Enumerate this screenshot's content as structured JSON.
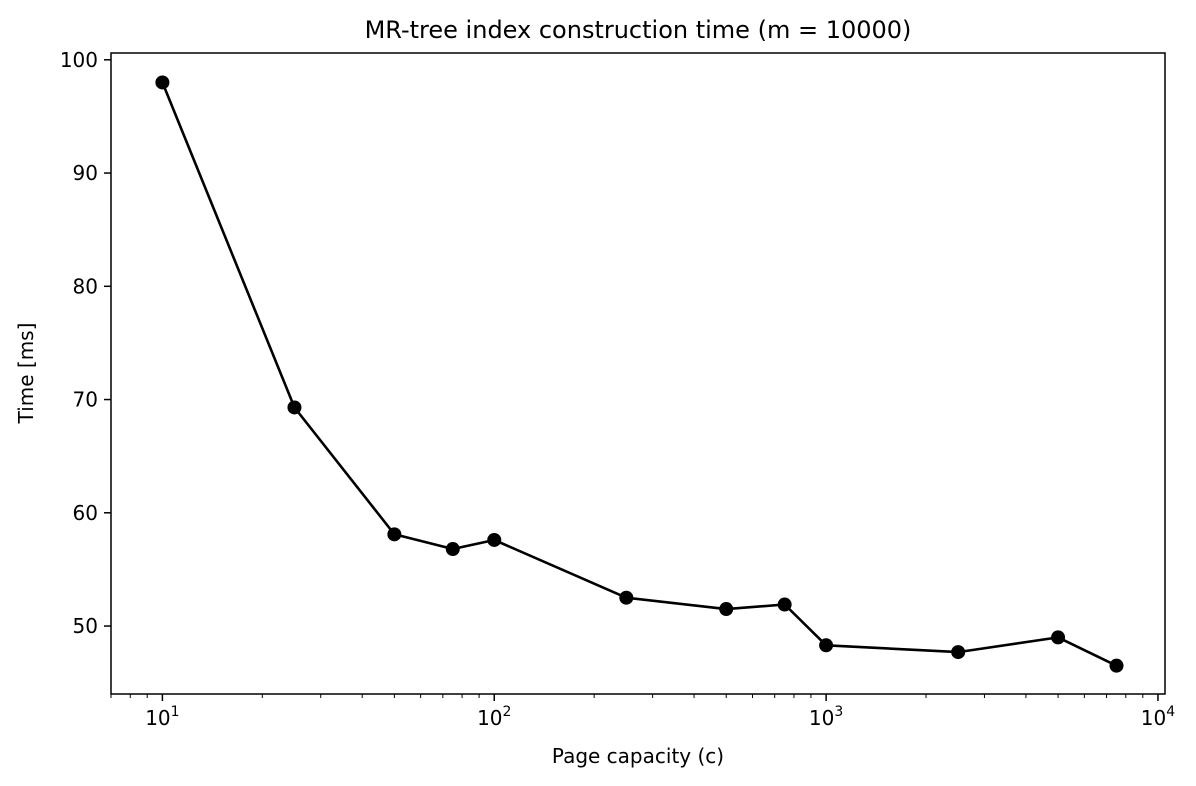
{
  "chart_data": {
    "type": "line",
    "title": "MR-tree index construction time (m = 10000)",
    "xlabel": "Page capacity (c)",
    "ylabel": "Time [ms]",
    "xscale": "log",
    "xlim": [
      7,
      10500
    ],
    "ylim": [
      44,
      100.6
    ],
    "grid": false,
    "legend": "none",
    "x_ticks": [
      {
        "value": 10,
        "base": "10",
        "exp": "1"
      },
      {
        "value": 100,
        "base": "10",
        "exp": "2"
      },
      {
        "value": 1000,
        "base": "10",
        "exp": "3"
      },
      {
        "value": 10000,
        "base": "10",
        "exp": "4"
      }
    ],
    "y_ticks": [
      50,
      60,
      70,
      80,
      90,
      100
    ],
    "series": [
      {
        "color": "#000000",
        "marker": "circle",
        "x": [
          10,
          25,
          50,
          75,
          100,
          250,
          500,
          750,
          1000,
          2500,
          5000,
          7500
        ],
        "y": [
          98.0,
          69.3,
          58.1,
          56.8,
          57.6,
          52.5,
          51.5,
          51.9,
          48.3,
          47.7,
          49.0,
          46.5
        ]
      }
    ]
  }
}
